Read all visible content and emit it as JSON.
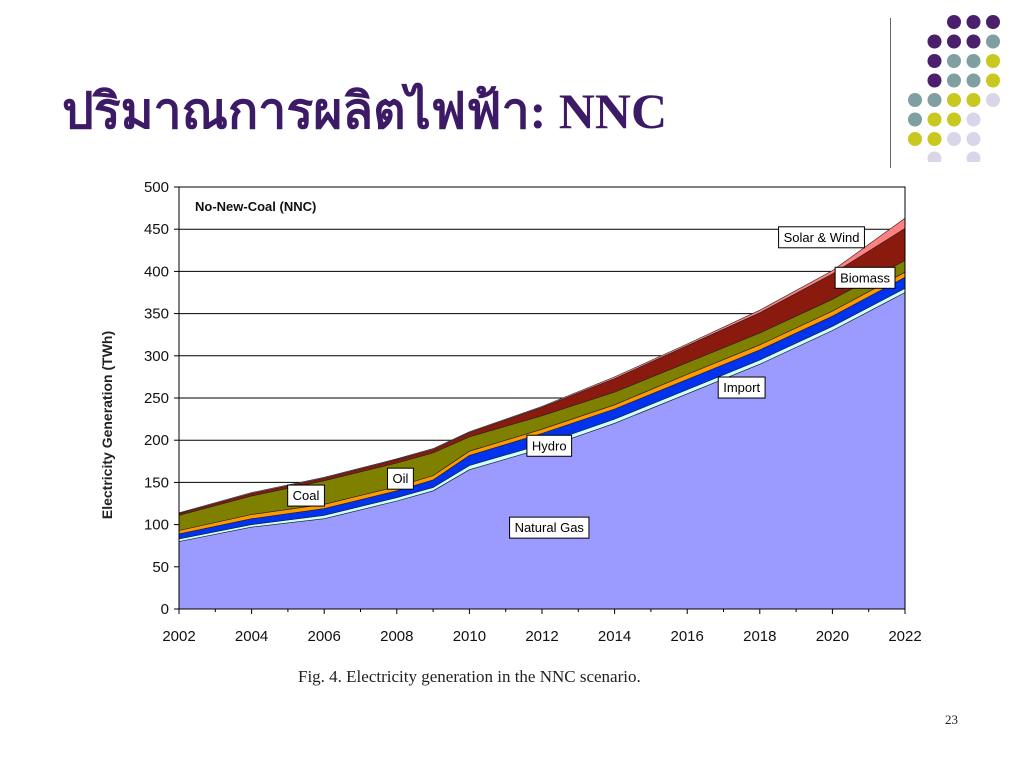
{
  "slide": {
    "title": "ปริมาณการผลิตไฟฟ้า: NNC",
    "caption": "Fig. 4.  Electricity generation in the NNC scenario.",
    "page_number": "23"
  },
  "decor": {
    "dot_grid": [
      [
        "",
        "",
        "#4a1f6b",
        "#4a1f6b",
        "#4a1f6b"
      ],
      [
        "",
        "#4a1f6b",
        "#4a1f6b",
        "#4a1f6b",
        "#7f9fa0"
      ],
      [
        "",
        "#4a1f6b",
        "#7f9fa0",
        "#7f9fa0",
        "#c8c820"
      ],
      [
        "",
        "#4a1f6b",
        "#7f9fa0",
        "#7f9fa0",
        "#c8c820"
      ],
      [
        "#7f9fa0",
        "#7f9fa0",
        "#c8c820",
        "#c8c820",
        "#d8d6e8"
      ],
      [
        "#7f9fa0",
        "#c8c820",
        "#c8c820",
        "#d8d6e8",
        ""
      ],
      [
        "#c8c820",
        "#c8c820",
        "#d8d6e8",
        "#d8d6e8",
        ""
      ],
      [
        "",
        "#d8d6e8",
        "",
        "#d8d6e8",
        ""
      ]
    ]
  },
  "chart_data": {
    "type": "area",
    "stacked": true,
    "title": "No-New-Coal (NNC)",
    "xlabel": "",
    "ylabel": "Electricity Generation (TWh)",
    "x": [
      2002,
      2004,
      2006,
      2008,
      2009,
      2010,
      2012,
      2014,
      2016,
      2018,
      2020,
      2022
    ],
    "xticks": [
      "2002",
      "2004",
      "2006",
      "2008",
      "2010",
      "2012",
      "2014",
      "2016",
      "2018",
      "2020",
      "2022"
    ],
    "ylim": [
      0,
      500
    ],
    "yticks": [
      "0",
      "50",
      "100",
      "150",
      "200",
      "250",
      "300",
      "350",
      "400",
      "450",
      "500"
    ],
    "grid": "horizontal",
    "series": [
      {
        "name": "Natural Gas",
        "color": "#9a9aff",
        "values": [
          80,
          97,
          107,
          128,
          140,
          165,
          190,
          220,
          255,
          290,
          330,
          375
        ]
      },
      {
        "name": "Import",
        "color": "#ccffff",
        "values": [
          3,
          3,
          4,
          4,
          4,
          5,
          5,
          5,
          5,
          5,
          5,
          5
        ]
      },
      {
        "name": "Hydro",
        "color": "#0033ee",
        "values": [
          6,
          7,
          8,
          8,
          9,
          12,
          13,
          12,
          12,
          12,
          12,
          13
        ]
      },
      {
        "name": "Oil",
        "color": "#ff9900",
        "values": [
          4,
          5,
          5,
          5,
          5,
          5,
          5,
          5,
          6,
          6,
          6,
          6
        ]
      },
      {
        "name": "Coal",
        "color": "#808000",
        "values": [
          18,
          22,
          28,
          28,
          27,
          17,
          16,
          15,
          14,
          14,
          14,
          14
        ]
      },
      {
        "name": "Biomass",
        "color": "#8b1a0e",
        "values": [
          2,
          3,
          3,
          4,
          4,
          5,
          10,
          16,
          20,
          24,
          30,
          38
        ]
      },
      {
        "name": "Solar & Wind",
        "color": "#ff8080",
        "values": [
          1,
          1,
          1,
          1,
          1,
          1,
          1,
          2,
          2,
          3,
          4,
          12
        ]
      }
    ],
    "labels": [
      {
        "text": "Natural Gas",
        "series": "Natural Gas",
        "x": 2012.2,
        "y": 97
      },
      {
        "text": "Import",
        "series": "Import",
        "x": 2017.5,
        "y": 263
      },
      {
        "text": "Hydro",
        "series": "Hydro",
        "x": 2012.2,
        "y": 194
      },
      {
        "text": "Oil",
        "series": "Oil",
        "x": 2008.1,
        "y": 155
      },
      {
        "text": "Coal",
        "series": "Coal",
        "x": 2005.5,
        "y": 135
      },
      {
        "text": "Biomass",
        "series": "Biomass",
        "x": 2020.9,
        "y": 393
      },
      {
        "text": "Solar & Wind",
        "series": "Solar & Wind",
        "x": 2019.7,
        "y": 441
      }
    ]
  }
}
